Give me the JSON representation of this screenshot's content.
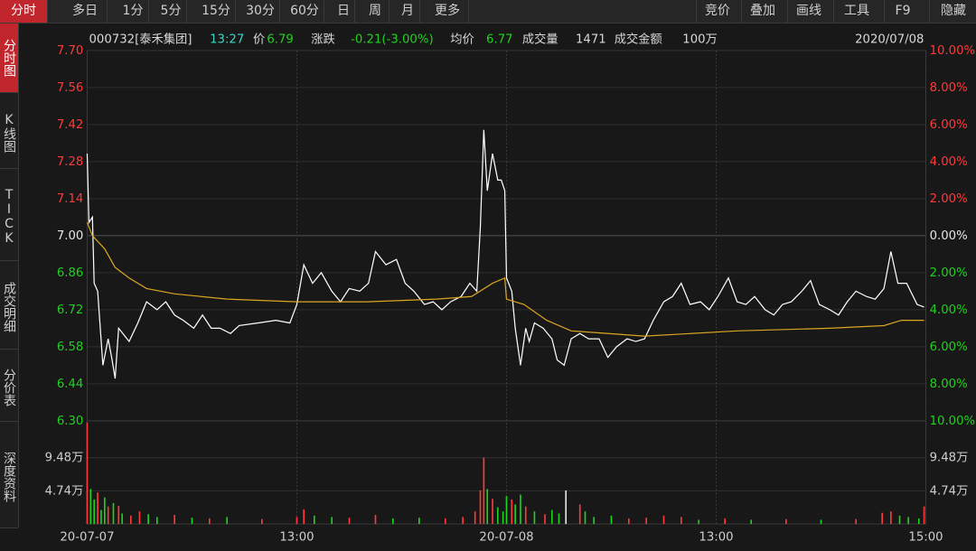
{
  "toolbar": {
    "left": [
      "分时",
      "多日",
      "1分",
      "5分",
      "15分",
      "30分",
      "60分",
      "日",
      "周",
      "月",
      "更多"
    ],
    "right": [
      "竞价",
      "叠加",
      "画线",
      "工具",
      "F9",
      "隐藏"
    ]
  },
  "sidebar": [
    "分时图",
    "K线图",
    "TICK",
    "成交明细",
    "分价表",
    "深度资料"
  ],
  "info": {
    "code": "000732[泰禾集团]",
    "time": "13:27",
    "price_label": "价",
    "price": 6.79,
    "change_label": "涨跌",
    "change": "-0.21(-3.00%)",
    "avg_label": "均价",
    "avg": 6.77,
    "volume_label": "成交量",
    "volume": 1471,
    "amount_label": "成交金额",
    "amount": "100万",
    "date": "2020/07/08"
  },
  "chart_data": [
    {
      "type": "line",
      "xlim": [
        0,
        480
      ],
      "xticks": [
        {
          "value": 0,
          "label": "20-07-07"
        },
        {
          "value": 120,
          "label": "13:00"
        },
        {
          "value": 240,
          "label": "20-07-08"
        },
        {
          "value": 360,
          "label": "13:00"
        },
        {
          "value": 480,
          "label": "15:00"
        }
      ],
      "ylim": [
        6.3,
        7.7
      ],
      "yticks": [
        {
          "value": 7.7,
          "label": "7.70"
        },
        7.56,
        7.42,
        7.28,
        7.14,
        {
          "value": 7.0,
          "label": "7.00"
        },
        6.86,
        6.72,
        6.58,
        6.44,
        {
          "value": 6.3,
          "label": "6.30"
        }
      ],
      "y2lim": [
        -10,
        10
      ],
      "y2ticks": [
        {
          "value": 10,
          "label": "10.00%"
        },
        {
          "value": 8,
          "label": "8.00%"
        },
        {
          "value": 6,
          "label": "6.00%"
        },
        {
          "value": 4,
          "label": "4.00%"
        },
        {
          "value": 2,
          "label": "2.00%"
        },
        {
          "value": 0,
          "label": "0.00%"
        },
        {
          "value": -2,
          "label": "2.00%"
        },
        {
          "value": -4,
          "label": "4.00%"
        },
        {
          "value": -6,
          "label": "6.00%"
        },
        {
          "value": -8,
          "label": "8.00%"
        },
        {
          "value": -10,
          "label": "10.00%"
        }
      ],
      "grid": true,
      "up_color": "#ff3a3a",
      "down_color": "#1ed21e",
      "flat_color": "#e6e6e6",
      "series": [
        {
          "color": "#ffffff",
          "x": [
            0,
            1,
            3,
            4,
            6,
            9,
            12,
            14,
            16,
            18,
            24,
            29,
            34,
            40,
            45,
            50,
            55,
            61,
            66,
            71,
            76,
            82,
            87,
            98,
            108,
            116,
            120,
            124,
            129,
            134,
            140,
            145,
            150,
            156,
            161,
            165,
            171,
            177,
            182,
            187,
            193,
            198,
            203,
            208,
            214,
            219,
            223,
            225,
            227,
            229,
            232,
            235,
            237,
            239,
            240,
            243,
            245,
            248,
            251,
            253,
            256,
            261,
            266,
            269,
            273,
            277,
            282,
            287,
            293,
            298,
            303,
            309,
            314,
            319,
            324,
            330,
            335,
            340,
            345,
            351,
            356,
            361,
            367,
            372,
            377,
            382,
            388,
            393,
            398,
            403,
            409,
            414,
            419,
            425,
            430,
            435,
            440,
            446,
            451,
            456,
            460,
            464,
            469,
            475,
            479
          ],
          "values": [
            7.31,
            7.05,
            7.07,
            6.82,
            6.79,
            6.51,
            6.61,
            6.54,
            6.46,
            6.65,
            6.6,
            6.67,
            6.75,
            6.72,
            6.75,
            6.7,
            6.68,
            6.65,
            6.7,
            6.65,
            6.65,
            6.63,
            6.66,
            6.67,
            6.68,
            6.67,
            6.74,
            6.89,
            6.82,
            6.86,
            6.79,
            6.75,
            6.8,
            6.79,
            6.82,
            6.94,
            6.89,
            6.91,
            6.82,
            6.79,
            6.74,
            6.75,
            6.72,
            6.75,
            6.77,
            6.82,
            6.79,
            7.03,
            7.4,
            7.17,
            7.31,
            7.21,
            7.21,
            7.17,
            6.84,
            6.79,
            6.65,
            6.51,
            6.65,
            6.6,
            6.67,
            6.65,
            6.61,
            6.53,
            6.51,
            6.61,
            6.63,
            6.61,
            6.61,
            6.54,
            6.58,
            6.61,
            6.6,
            6.61,
            6.68,
            6.75,
            6.77,
            6.82,
            6.74,
            6.75,
            6.72,
            6.77,
            6.84,
            6.75,
            6.74,
            6.77,
            6.72,
            6.7,
            6.74,
            6.75,
            6.79,
            6.83,
            6.74,
            6.72,
            6.7,
            6.75,
            6.79,
            6.77,
            6.76,
            6.8,
            6.94,
            6.82,
            6.82,
            6.74,
            6.73
          ]
        },
        {
          "color": "#d9a620",
          "x": [
            0,
            3,
            10,
            16,
            24,
            34,
            50,
            80,
            120,
            160,
            200,
            220,
            232,
            239,
            240,
            250,
            263,
            277,
            319,
            372,
            425,
            456,
            466,
            479
          ],
          "values": [
            7.05,
            7.0,
            6.95,
            6.88,
            6.84,
            6.8,
            6.78,
            6.76,
            6.75,
            6.75,
            6.76,
            6.77,
            6.82,
            6.84,
            6.76,
            6.74,
            6.68,
            6.64,
            6.62,
            6.64,
            6.65,
            6.66,
            6.68,
            6.68
          ]
        }
      ]
    },
    {
      "type": "bar",
      "xlim": [
        0,
        480
      ],
      "ylim": [
        0,
        14.75
      ],
      "yticks": [
        {
          "value": 4.74,
          "label": "4.74万"
        },
        {
          "value": 9.48,
          "label": "9.48万"
        }
      ],
      "x": [
        0,
        2,
        4,
        6,
        8,
        10,
        12,
        15,
        18,
        20,
        25,
        30,
        35,
        40,
        50,
        60,
        70,
        80,
        100,
        120,
        124,
        130,
        140,
        150,
        165,
        175,
        190,
        205,
        215,
        222,
        225,
        227,
        229,
        232,
        235,
        238,
        240,
        243,
        245,
        248,
        251,
        256,
        262,
        266,
        270,
        274,
        282,
        285,
        290,
        300,
        310,
        320,
        330,
        340,
        350,
        365,
        380,
        400,
        420,
        440,
        455,
        460,
        465,
        470,
        476,
        479
      ],
      "values": [
        14.5,
        5.0,
        3.5,
        4.5,
        2.0,
        3.8,
        2.5,
        3.0,
        2.6,
        1.5,
        1.2,
        1.8,
        1.4,
        1.0,
        1.3,
        0.9,
        0.8,
        1.0,
        0.7,
        1.0,
        2.1,
        1.2,
        1.0,
        0.9,
        1.3,
        0.8,
        0.9,
        0.8,
        1.0,
        1.8,
        4.8,
        9.5,
        5.0,
        3.6,
        2.4,
        1.8,
        4.0,
        3.5,
        2.8,
        4.2,
        2.5,
        1.8,
        1.4,
        2.0,
        1.5,
        4.8,
        2.8,
        1.8,
        1.0,
        1.2,
        0.8,
        0.9,
        1.2,
        1.0,
        0.6,
        0.8,
        0.6,
        0.7,
        0.6,
        0.7,
        1.6,
        1.8,
        1.2,
        1.0,
        0.8,
        2.5
      ],
      "colors": [
        "#ff3a3a",
        "#1ed21e",
        "#1ed21e",
        "#ff3a3a",
        "#1ed21e",
        "#1ed21e",
        "#ff3a3a",
        "#1ed21e",
        "#ff3a3a",
        "#1ed21e",
        "#ff3a3a",
        "#ff3a3a",
        "#1ed21e",
        "#1ed21e",
        "#ff3a3a",
        "#1ed21e",
        "#ff3a3a",
        "#1ed21e",
        "#ff3a3a",
        "#ff3a3a",
        "#ff3a3a",
        "#1ed21e",
        "#1ed21e",
        "#ff3a3a",
        "#ff3a3a",
        "#1ed21e",
        "#1ed21e",
        "#ff3a3a",
        "#ff3a3a",
        "#ff3a3a",
        "#ff3a3a",
        "#ff3a3a",
        "#1ed21e",
        "#ff3a3a",
        "#1ed21e",
        "#1ed21e",
        "#1ed21e",
        "#ff3a3a",
        "#1ed21e",
        "#1ed21e",
        "#ff3a3a",
        "#1ed21e",
        "#ff3a3a",
        "#1ed21e",
        "#1ed21e",
        "#e6e6e6",
        "#ff3a3a",
        "#1ed21e",
        "#1ed21e",
        "#1ed21e",
        "#ff3a3a",
        "#ff3a3a",
        "#ff3a3a",
        "#ff3a3a",
        "#1ed21e",
        "#ff3a3a",
        "#1ed21e",
        "#ff3a3a",
        "#1ed21e",
        "#ff3a3a",
        "#ff3a3a",
        "#ff3a3a",
        "#1ed21e",
        "#1ed21e",
        "#1ed21e",
        "#ff3a3a"
      ]
    }
  ]
}
